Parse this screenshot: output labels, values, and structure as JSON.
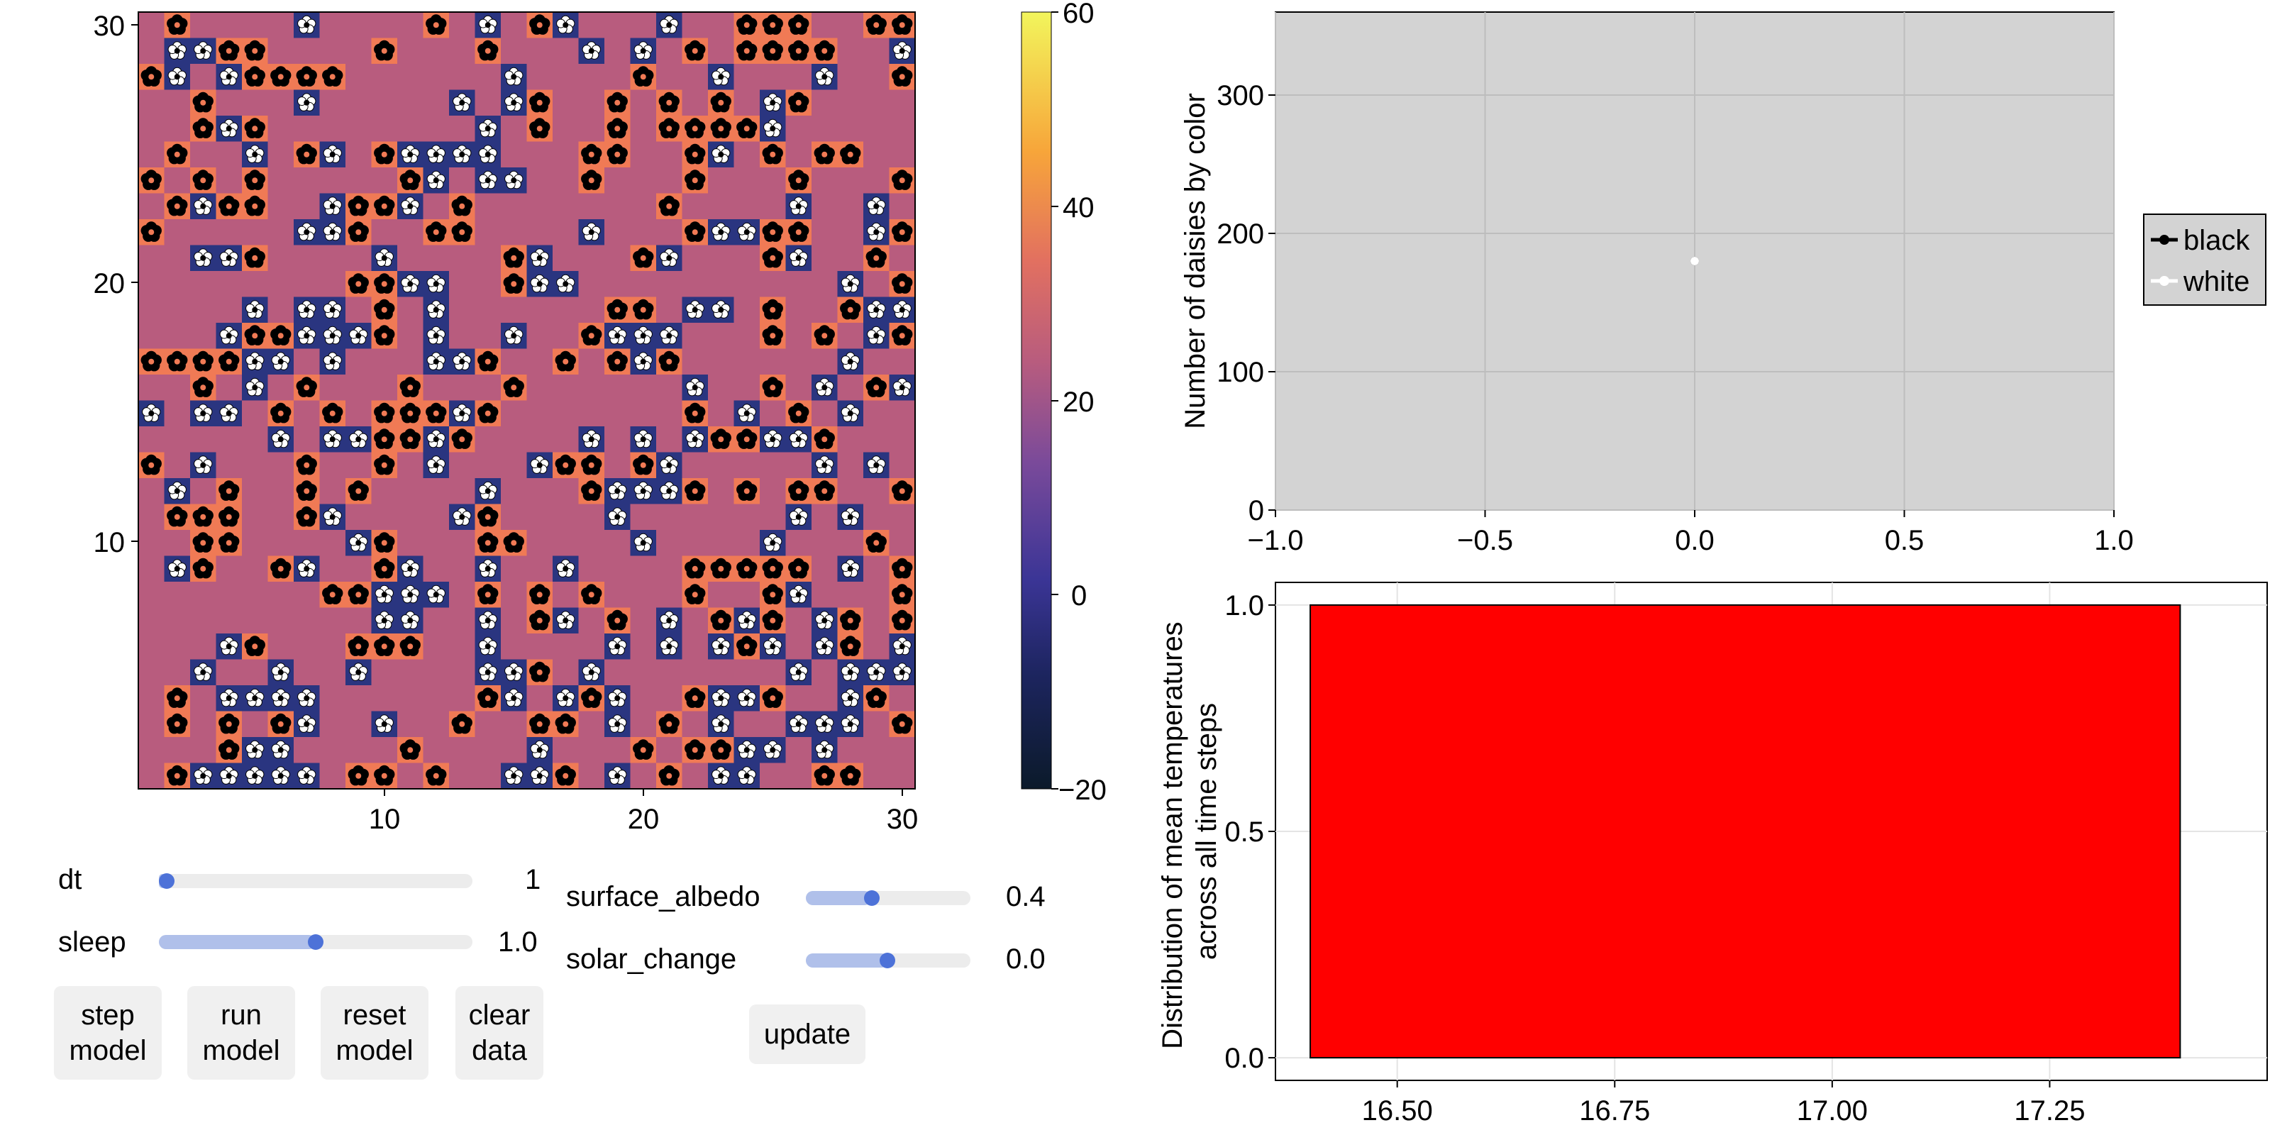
{
  "heatmap": {
    "x_ticks": [
      "10",
      "20",
      "30"
    ],
    "y_ticks": [
      "10",
      "20",
      "30"
    ],
    "xlim": [
      0.5,
      30.5
    ],
    "ylim": [
      0.5,
      30.5
    ],
    "background_temperature": 22,
    "colorbar": {
      "ticks": [
        "60",
        "40",
        "20",
        "0",
        "−20"
      ],
      "range": [
        -20,
        60
      ]
    },
    "colors": {
      "ground": "#b85c7e",
      "white_daisy_cell": "#2a3580",
      "black_daisy_cell": "#f07a55",
      "frame": "#000000"
    }
  },
  "controls": {
    "dt": {
      "label": "dt",
      "value": "1",
      "fraction": 0.0
    },
    "sleep": {
      "label": "sleep",
      "value": "1.0",
      "fraction": 0.5
    },
    "surface_albedo": {
      "label": "surface_albedo",
      "value": "0.4",
      "fraction": 0.4
    },
    "solar_change": {
      "label": "solar_change",
      "value": "0.0",
      "fraction": 0.5
    },
    "buttons": {
      "step": "step\nmodel",
      "run": "run\nmodel",
      "reset": "reset\nmodel",
      "clear": "clear\ndata",
      "update": "update"
    }
  },
  "chart_data": [
    {
      "type": "scatter",
      "ylabel": "Number of daisies by color",
      "xlabel": "",
      "xlim": [
        -1.0,
        1.0
      ],
      "ylim": [
        0,
        360
      ],
      "x_ticks": [
        "−1.0",
        "−0.5",
        "0.0",
        "0.5",
        "1.0"
      ],
      "y_ticks": [
        "0",
        "100",
        "200",
        "300"
      ],
      "grid": true,
      "legend_position": "right",
      "series": [
        {
          "name": "black",
          "color": "#000000",
          "x": [
            0.0
          ],
          "y": [
            180
          ]
        },
        {
          "name": "white",
          "color": "#ffffff",
          "x": [
            0.0
          ],
          "y": [
            180
          ]
        }
      ]
    },
    {
      "type": "bar",
      "ylabel": "Distribution of mean temperatures\nacross all time steps",
      "xlabel": "",
      "xlim": [
        16.36,
        17.5
      ],
      "ylim": [
        -0.05,
        1.05
      ],
      "x_ticks": [
        "16.50",
        "16.75",
        "17.00",
        "17.25"
      ],
      "y_ticks": [
        "0.0",
        "0.5",
        "1.0"
      ],
      "grid": true,
      "bins": [
        {
          "start": 16.4,
          "end": 17.4,
          "value": 1.0
        }
      ],
      "color": "#ff0000"
    }
  ]
}
